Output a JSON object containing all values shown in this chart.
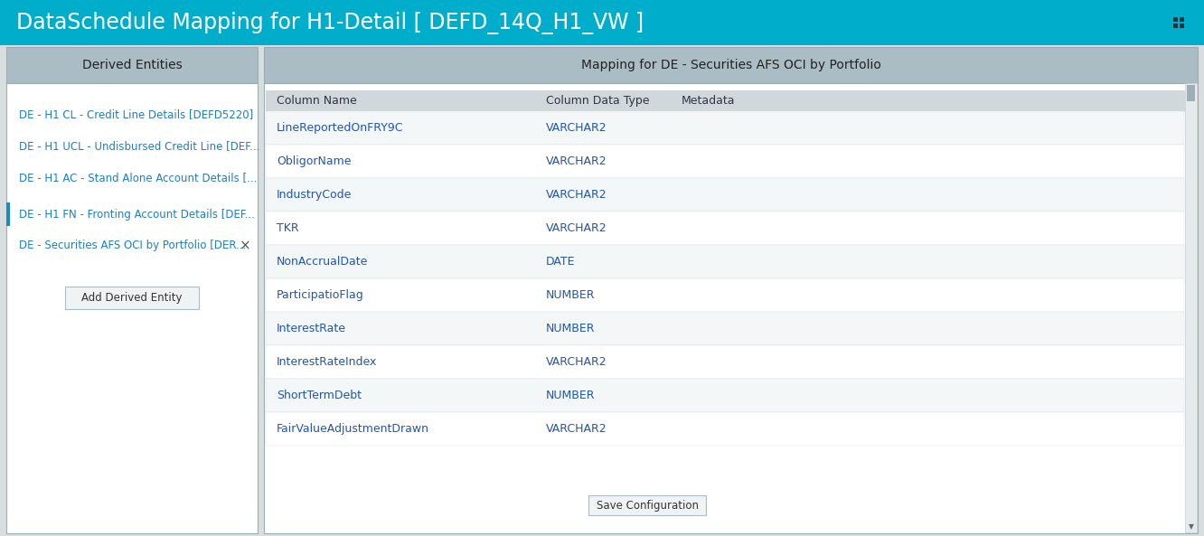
{
  "title": "DataSchedule Mapping for H1-Detail [ DEFD_14Q_H1_VW ]",
  "title_bg": "#00AECC",
  "title_color": "#FFFFFF",
  "title_fontsize": 17,
  "header_bg": "#ABBDC4",
  "content_bg": "#FFFFFF",
  "main_bg": "#D8DEE0",
  "left_panel_title": "Derived Entities",
  "right_panel_title": "Mapping for DE - Securities AFS OCI by Portfolio",
  "left_items": [
    "DE - H1 CL - Credit Line Details [DEFD5220]",
    "DE - H1 UCL - Undisbursed Credit Line [DEF...",
    "DE - H1 AC - Stand Alone Account Details [...",
    "DE - H1 FN - Fronting Account Details [DEF...",
    "DE - Securities AFS OCI by Portfolio [DER..."
  ],
  "selected_item_index": 3,
  "selected_item_bar_color": "#1B8AC4",
  "add_button_text": "Add Derived Entity",
  "table_headers": [
    "Column Name",
    "Column Data Type",
    "Metadata"
  ],
  "table_header_bg": "#D0D8DC",
  "table_rows": [
    [
      "LineReportedOnFRY9C",
      "VARCHAR2",
      ""
    ],
    [
      "ObligorName",
      "VARCHAR2",
      ""
    ],
    [
      "IndustryCode",
      "VARCHAR2",
      ""
    ],
    [
      "TKR",
      "VARCHAR2",
      ""
    ],
    [
      "NonAccrualDate",
      "DATE",
      ""
    ],
    [
      "ParticipatioFlag",
      "NUMBER",
      ""
    ],
    [
      "InterestRate",
      "NUMBER",
      ""
    ],
    [
      "InterestRateIndex",
      "VARCHAR2",
      ""
    ],
    [
      "ShortTermDebt",
      "NUMBER",
      ""
    ],
    [
      "FairValueAdjustmentDrawn",
      "VARCHAR2",
      ""
    ]
  ],
  "row_even_color": "#F4F7F8",
  "row_odd_color": "#FFFFFF",
  "col_name_color": "#2255AA",
  "col_dtype_color": "#2255AA",
  "col_header_color": "#333344",
  "save_button_text": "Save Configuration",
  "figsize": [
    13.32,
    5.93
  ],
  "dpi": 100
}
